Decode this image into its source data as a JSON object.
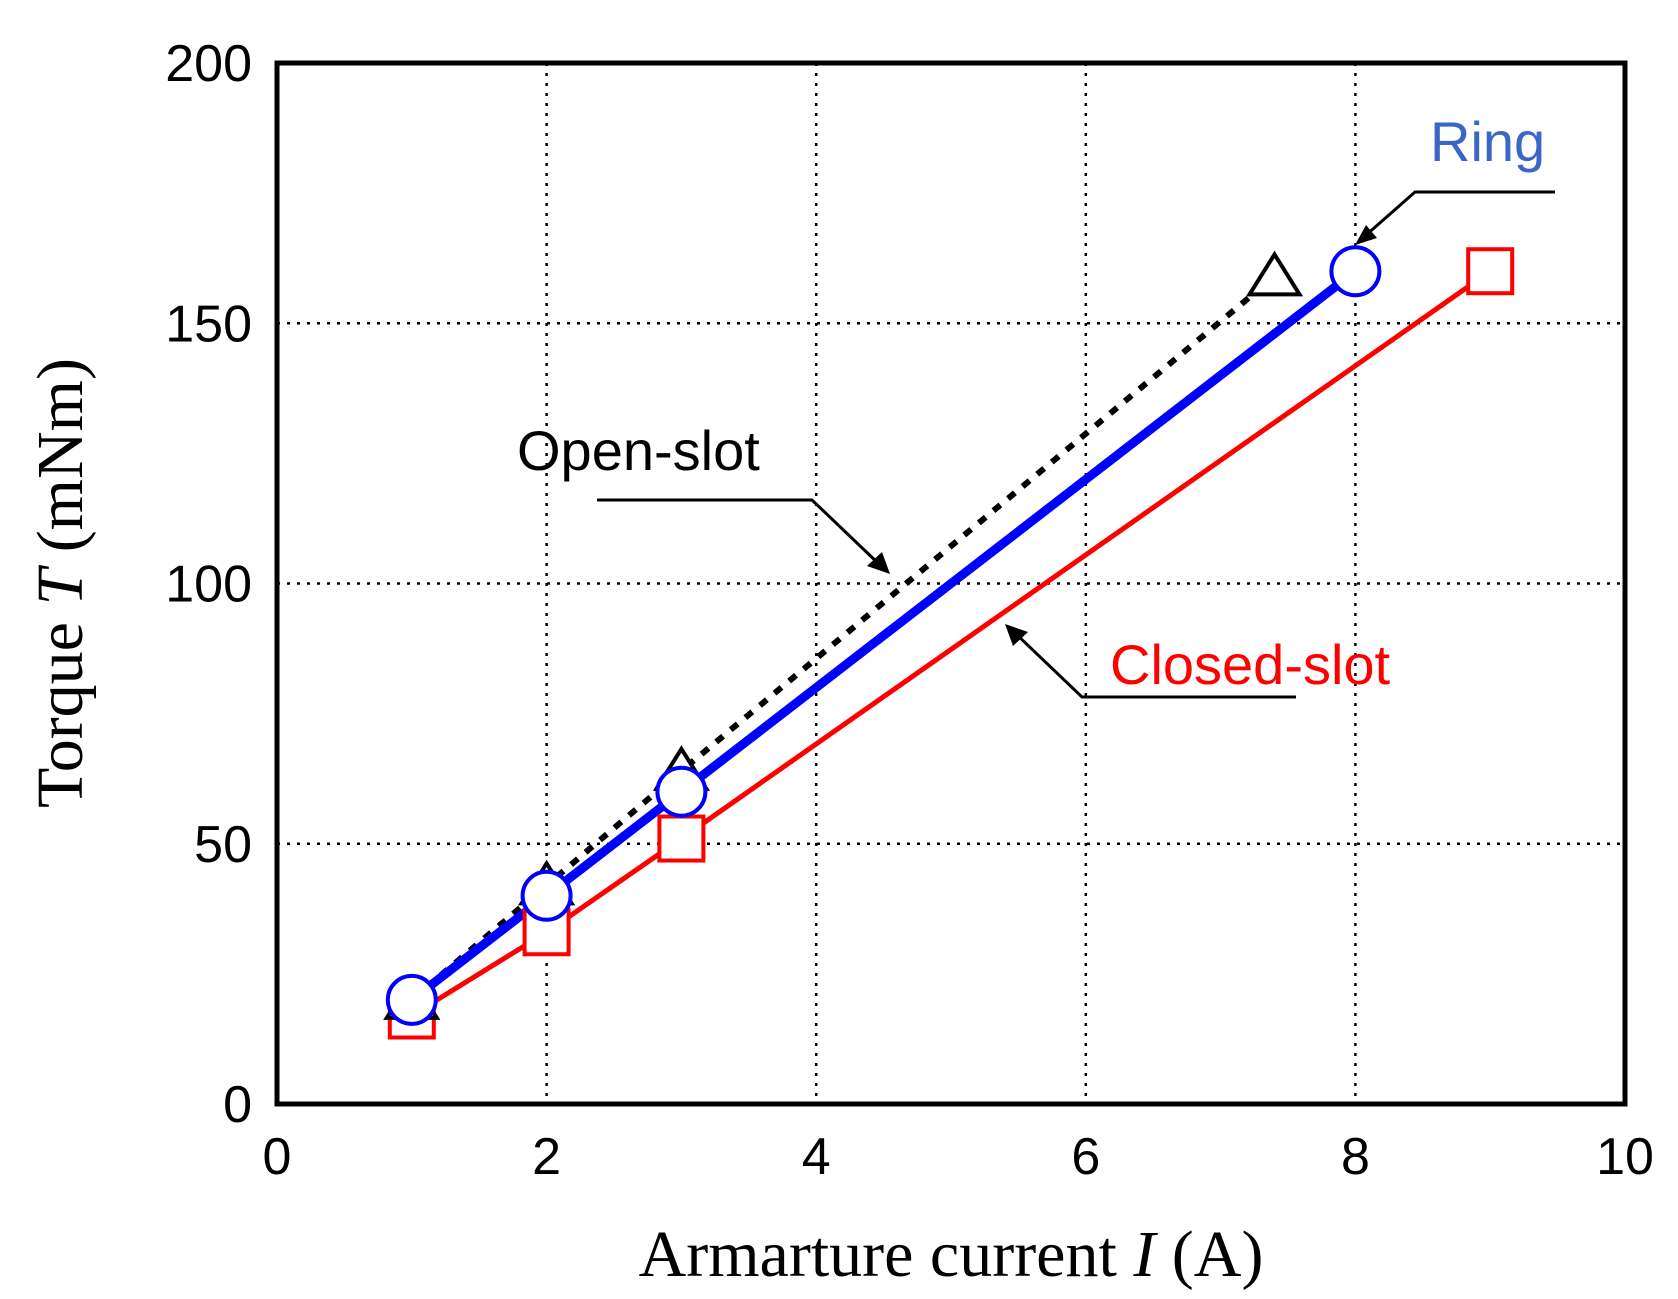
{
  "chart_data": {
    "type": "line",
    "title": "",
    "xlabel": {
      "prefix": "Armarture current ",
      "symbol": "I",
      "suffix": " (A)"
    },
    "ylabel": {
      "prefix": "Torque ",
      "symbol": "T",
      "suffix": " (mNm)"
    },
    "xlim": [
      0,
      10
    ],
    "ylim": [
      0,
      200
    ],
    "xticks": [
      0,
      2,
      4,
      6,
      8,
      10
    ],
    "yticks": [
      0,
      50,
      100,
      150,
      200
    ],
    "grid": true,
    "series": [
      {
        "name": "Open-slot",
        "color": "#000000",
        "line_style": "dotted",
        "marker": "triangle",
        "x": [
          1,
          2,
          3,
          7.4
        ],
        "y": [
          20,
          42,
          64,
          159
        ]
      },
      {
        "name": "Ring",
        "color": "#0000ff",
        "label_color": "#3a66c8",
        "line_style": "solid-thick",
        "marker": "circle",
        "x": [
          1,
          2,
          3,
          8
        ],
        "y": [
          20,
          40,
          60,
          160
        ]
      },
      {
        "name": "Closed-slot",
        "color": "#ff0000",
        "label_color": "#ff0000",
        "line_style": "solid",
        "marker": "square",
        "x": [
          1,
          2,
          3,
          9
        ],
        "y": [
          17,
          33,
          51,
          160
        ]
      }
    ]
  }
}
